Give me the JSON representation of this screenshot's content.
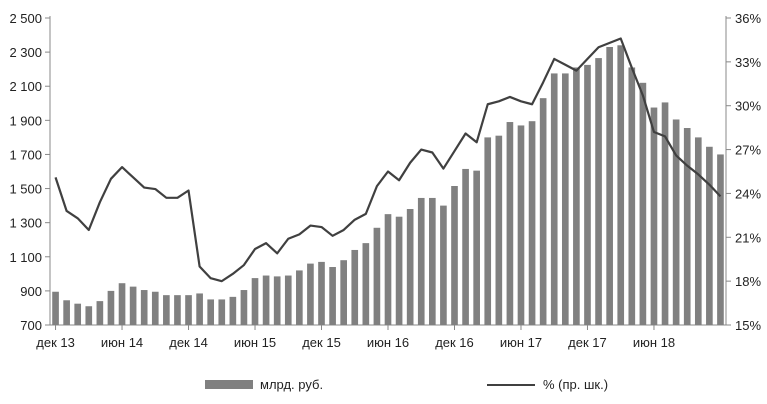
{
  "chart_data": {
    "type": "bar",
    "x": [
      "дек 13",
      "янв 14",
      "фев 14",
      "мар 14",
      "апр 14",
      "май 14",
      "июн 14",
      "июл 14",
      "авг 14",
      "сен 14",
      "окт 14",
      "ноя 14",
      "дек 14",
      "янв 15",
      "фев 15",
      "мар 15",
      "апр 15",
      "май 15",
      "июн 15",
      "июл 15",
      "авг 15",
      "сен 15",
      "окт 15",
      "ноя 15",
      "дек 15",
      "янв 16",
      "фев 16",
      "мар 16",
      "апр 16",
      "май 16",
      "июн 16",
      "июл 16",
      "авг 16",
      "сен 16",
      "окт 16",
      "ноя 16",
      "дек 16",
      "янв 17",
      "фев 17",
      "мар 17",
      "апр 17",
      "май 17",
      "июн 17",
      "июл 17",
      "авг 17",
      "сен 17",
      "окт 17",
      "ноя 17",
      "дек 17",
      "янв 18",
      "фев 18",
      "мар 18",
      "апр 18",
      "май 18",
      "июн 18",
      "июл 18",
      "авг 18",
      "сен 18",
      "окт 18",
      "ноя 18",
      "дек 18"
    ],
    "x_tick_labels": [
      "дек 13",
      "июн 14",
      "дек 14",
      "июн 15",
      "дек 15",
      "июн 16",
      "дек 16",
      "июн 17",
      "дек 17",
      "июн 18"
    ],
    "series": [
      {
        "name": "млрд. руб.",
        "type": "bar",
        "axis": "left",
        "color": "#808080",
        "values": [
          895,
          845,
          825,
          810,
          840,
          900,
          945,
          925,
          905,
          895,
          875,
          875,
          875,
          885,
          850,
          850,
          865,
          905,
          975,
          990,
          985,
          990,
          1020,
          1060,
          1070,
          1040,
          1080,
          1140,
          1180,
          1270,
          1350,
          1335,
          1380,
          1445,
          1445,
          1400,
          1515,
          1615,
          1605,
          1800,
          1810,
          1890,
          1870,
          1895,
          2030,
          2175,
          2175,
          2210,
          2225,
          2265,
          2330,
          2340,
          2210,
          2120,
          1975,
          2005,
          1905,
          1855,
          1800,
          1745,
          1700
        ]
      },
      {
        "name": "% (пр. шк.)",
        "type": "line",
        "axis": "right",
        "color": "#404040",
        "values": [
          25.1,
          22.8,
          22.3,
          21.5,
          23.4,
          25.0,
          25.8,
          25.1,
          24.4,
          24.3,
          23.7,
          23.7,
          24.2,
          19.0,
          18.2,
          18.0,
          18.5,
          19.1,
          20.2,
          20.6,
          19.9,
          20.9,
          21.2,
          21.8,
          21.7,
          21.1,
          21.5,
          22.2,
          22.6,
          24.5,
          25.5,
          24.9,
          26.1,
          27.0,
          26.8,
          25.7,
          26.9,
          28.1,
          27.5,
          30.1,
          30.3,
          30.6,
          30.3,
          30.1,
          31.6,
          33.2,
          32.8,
          32.4,
          33.2,
          34.0,
          34.3,
          34.6,
          32.6,
          30.7,
          28.2,
          27.9,
          26.6,
          25.9,
          25.3,
          24.6,
          23.8
        ]
      }
    ],
    "y_left": {
      "min": 700,
      "max": 2500,
      "ticks": [
        700,
        900,
        1100,
        1300,
        1500,
        1700,
        1900,
        2100,
        2300,
        2500
      ],
      "tick_labels": [
        "700",
        "900",
        "1 100",
        "1 300",
        "1 500",
        "1 700",
        "1 900",
        "2 100",
        "2 300",
        "2 500"
      ]
    },
    "y_right": {
      "min": 15,
      "max": 36,
      "ticks": [
        15,
        18,
        21,
        24,
        27,
        30,
        33,
        36
      ],
      "tick_labels": [
        "15%",
        "18%",
        "21%",
        "24%",
        "27%",
        "30%",
        "33%",
        "36%"
      ]
    },
    "legend": {
      "position": "bottom",
      "entries": [
        "млрд. руб.",
        "% (пр. шк.)"
      ]
    },
    "grid": false
  }
}
